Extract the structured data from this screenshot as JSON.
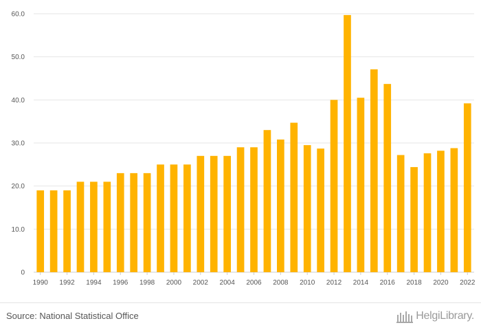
{
  "chart_data": {
    "type": "bar",
    "categories": [
      "1990",
      "1991",
      "1992",
      "1993",
      "1994",
      "1995",
      "1996",
      "1997",
      "1998",
      "1999",
      "2000",
      "2001",
      "2002",
      "2003",
      "2004",
      "2005",
      "2006",
      "2007",
      "2008",
      "2009",
      "2010",
      "2011",
      "2012",
      "2013",
      "2014",
      "2015",
      "2016",
      "2017",
      "2018",
      "2019",
      "2020",
      "2021",
      "2022"
    ],
    "values": [
      19.0,
      19.0,
      19.0,
      21.0,
      21.0,
      21.0,
      23.0,
      23.0,
      23.0,
      25.0,
      25.0,
      25.0,
      27.0,
      27.0,
      27.0,
      29.0,
      29.0,
      33.0,
      30.8,
      34.7,
      29.5,
      28.7,
      40.0,
      59.7,
      40.5,
      47.1,
      43.7,
      27.2,
      24.4,
      27.6,
      28.2,
      28.8,
      39.2
    ],
    "x_tick_labels": [
      "1990",
      "1992",
      "1994",
      "1996",
      "1998",
      "2000",
      "2002",
      "2004",
      "2006",
      "2008",
      "2010",
      "2012",
      "2014",
      "2016",
      "2018",
      "2020",
      "2022"
    ],
    "y_ticks": [
      0,
      10,
      20,
      30,
      40,
      50,
      60
    ],
    "y_tick_labels": [
      "0",
      "10.0",
      "20.0",
      "30.0",
      "40.0",
      "50.0",
      "60.0"
    ],
    "ylim": [
      0,
      60
    ],
    "grid": true,
    "bar_color": "#ffb300",
    "title": "",
    "xlabel": "",
    "ylabel": ""
  },
  "footer": {
    "source": "Source: National Statistical Office",
    "logo_text": "HelgiLibrary."
  }
}
